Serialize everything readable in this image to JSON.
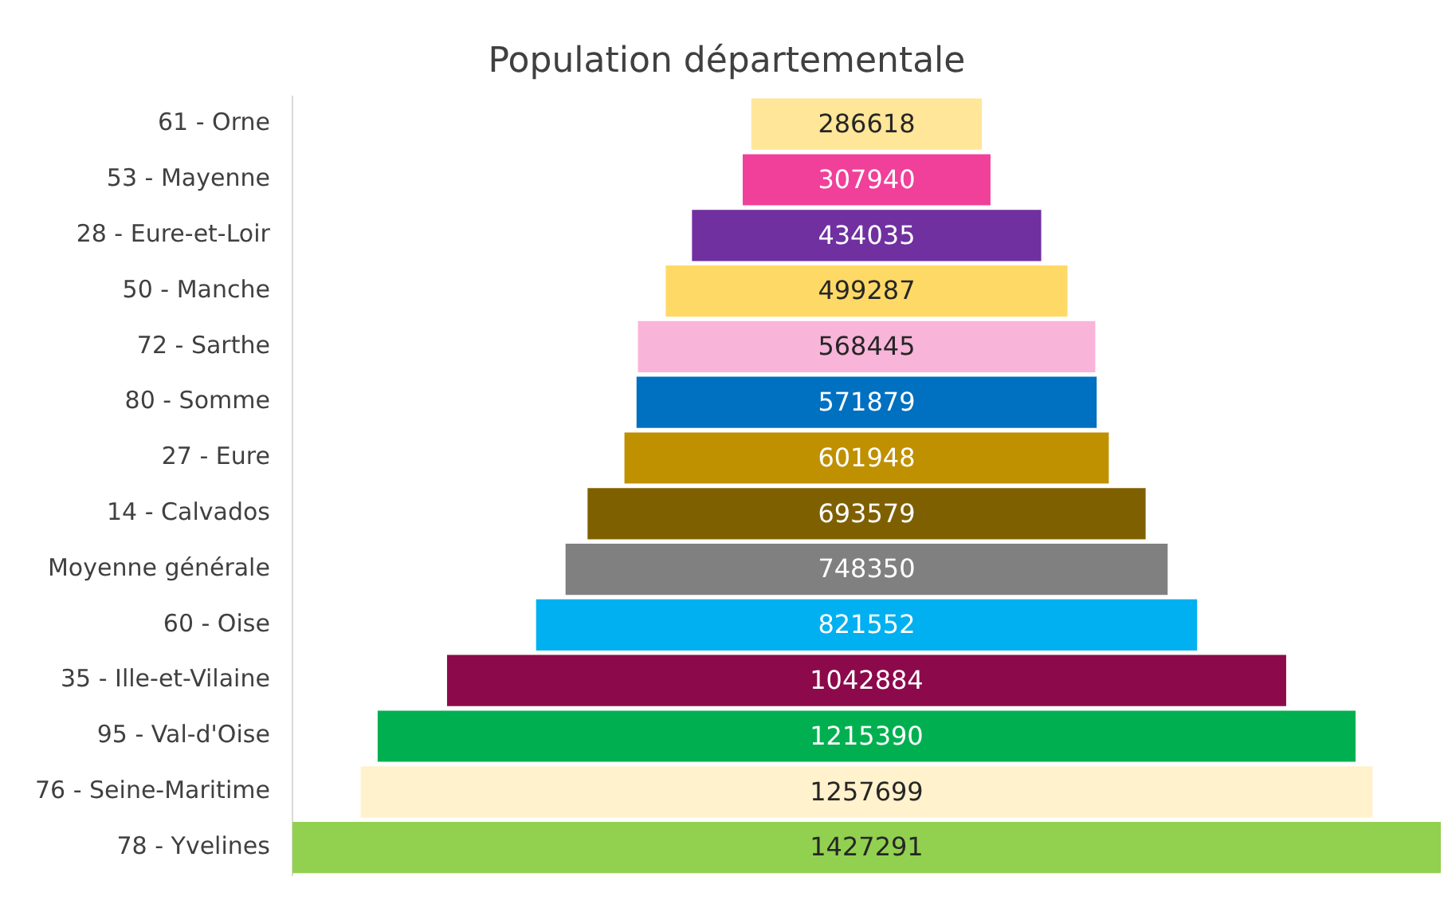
{
  "chart_data": {
    "type": "other",
    "title": "Population départementale",
    "categories": [
      "61 - Orne",
      "53 - Mayenne",
      "28 - Eure-et-Loir",
      "50 - Manche",
      "72 - Sarthe",
      "80 - Somme",
      "27 - Eure",
      "14 - Calvados",
      "Moyenne générale",
      "60 - Oise",
      "35 - Ille-et-Vilaine",
      "95 - Val-d'Oise",
      "76 - Seine-Maritime",
      "78 - Yvelines"
    ],
    "values": [
      286618,
      307940,
      434035,
      499287,
      568445,
      571879,
      601948,
      693579,
      748350,
      821552,
      1042884,
      1215390,
      1257699,
      1427291
    ],
    "colors": [
      "#ffe699",
      "#f0409a",
      "#7030a0",
      "#ffd966",
      "#f9b4d9",
      "#0070c0",
      "#bf9000",
      "#7f6000",
      "#808080",
      "#00b0f0",
      "#8c0a4b",
      "#00b050",
      "#fff2cc",
      "#92d050"
    ],
    "data_labels": true,
    "legend": false
  }
}
